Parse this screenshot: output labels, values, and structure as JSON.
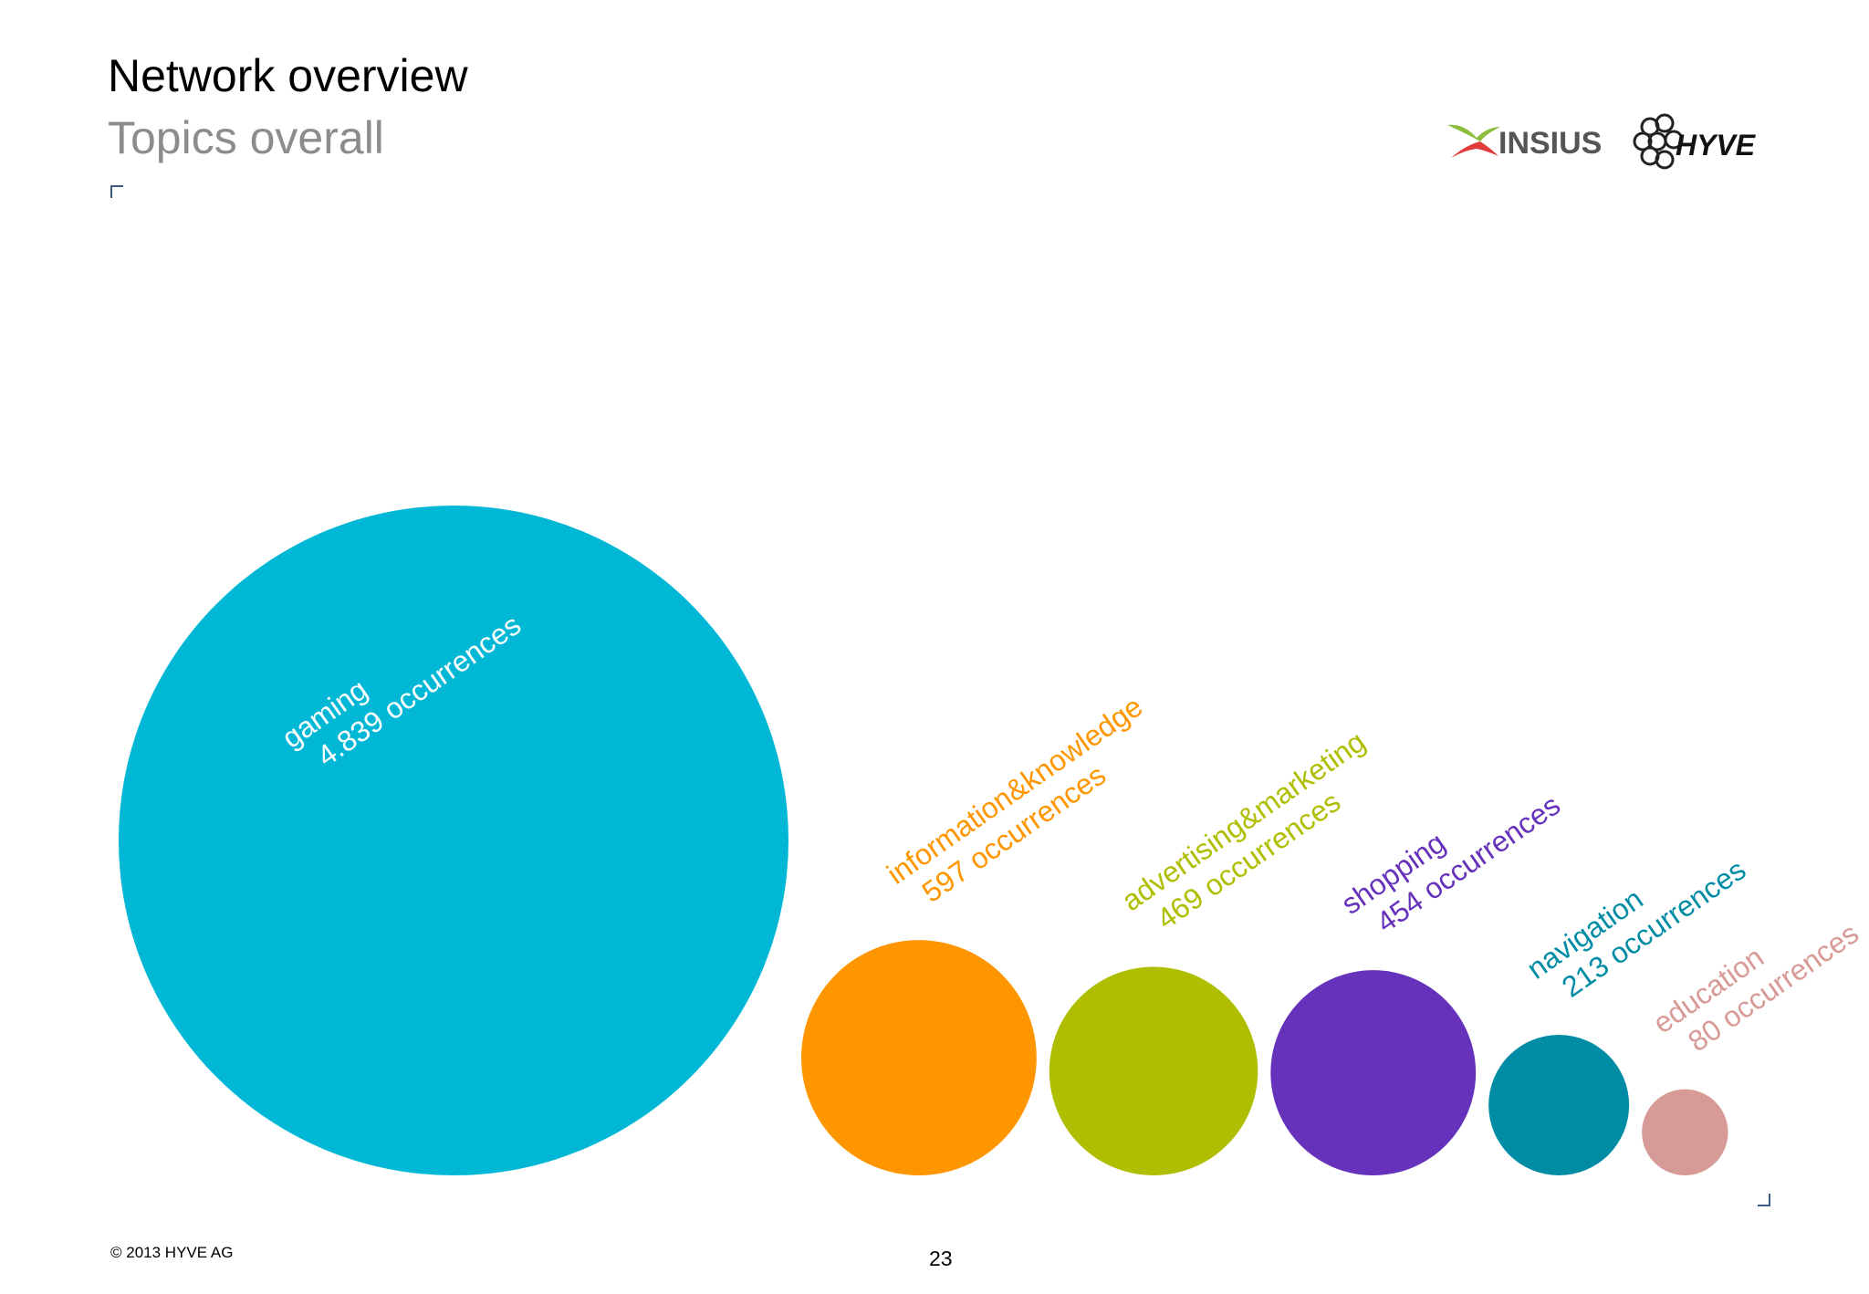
{
  "header": {
    "title": "Network overview",
    "subtitle": "Topics overall"
  },
  "logos": {
    "insius": "INSIUS",
    "hyve": "HYVE"
  },
  "footer": {
    "copyright": "© 2013 HYVE AG",
    "page_number": "23"
  },
  "chart_data": {
    "type": "bubble",
    "title": "",
    "unit_suffix": "occurrences",
    "items": [
      {
        "label": "gaming",
        "value": 4839,
        "value_text": "4.839 occurrences",
        "color": "#00b8d6"
      },
      {
        "label": "information&knowledge",
        "value": 597,
        "value_text": "597 occurrences",
        "color": "#ff9600"
      },
      {
        "label": "advertising&marketing",
        "value": 469,
        "value_text": "469 occurrences",
        "color": "#afbe00"
      },
      {
        "label": "shopping",
        "value": 454,
        "value_text": "454 occurrences",
        "color": "#6631bb"
      },
      {
        "label": "navigation",
        "value": 213,
        "value_text": "213 occurrences",
        "color": "#008ca5"
      },
      {
        "label": "education",
        "value": 80,
        "value_text": "80 occurrences",
        "color": "#d89a97"
      }
    ]
  }
}
